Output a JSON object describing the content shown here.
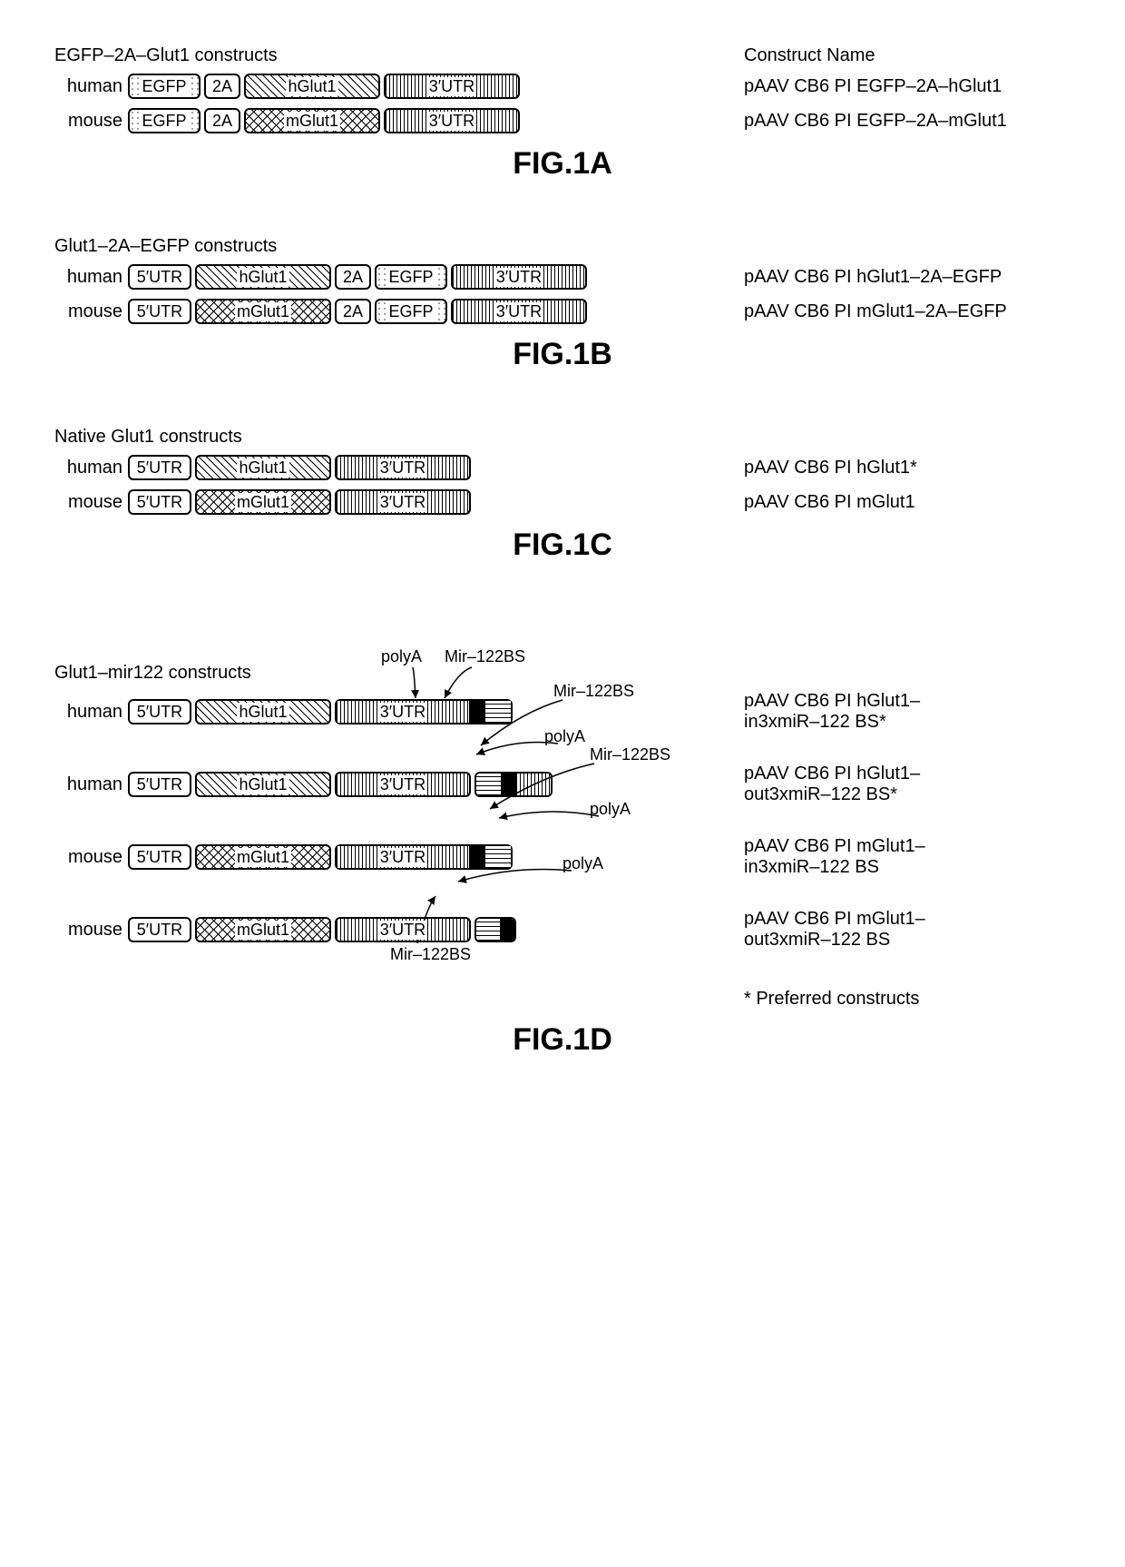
{
  "sizes": {
    "EGFP": 80,
    "2A": 40,
    "hGlut1": 150,
    "mGlut1": 150,
    "3UTR": 150,
    "5UTR": 70,
    "polyA": 18,
    "mir": 28,
    "utrSeg": 40
  },
  "colHeader": "Construct Name",
  "panels": {
    "A": {
      "title": "EGFP–2A–Glut1 constructs",
      "label": "FIG.1A",
      "rows": [
        {
          "species": "human",
          "blocks": [
            {
              "t": "EGFP",
              "p": "p-egfp",
              "w": "EGFP"
            },
            {
              "t": "2A",
              "p": "p-plain",
              "w": "2A"
            },
            {
              "t": "hGlut1",
              "p": "p-diag",
              "w": "hGlut1"
            },
            {
              "t": "3′UTR",
              "p": "p-vbar",
              "w": "3UTR"
            }
          ],
          "name": "pAAV CB6 PI EGFP–2A–hGlut1"
        },
        {
          "species": "mouse",
          "blocks": [
            {
              "t": "EGFP",
              "p": "p-egfp",
              "w": "EGFP"
            },
            {
              "t": "2A",
              "p": "p-plain",
              "w": "2A"
            },
            {
              "t": "mGlut1",
              "p": "p-hatch",
              "w": "mGlut1"
            },
            {
              "t": "3′UTR",
              "p": "p-vbar",
              "w": "3UTR"
            }
          ],
          "name": "pAAV CB6 PI EGFP–2A–mGlut1"
        }
      ]
    },
    "B": {
      "title": "Glut1–2A–EGFP constructs",
      "label": "FIG.1B",
      "rows": [
        {
          "species": "human",
          "blocks": [
            {
              "t": "5′UTR",
              "p": "p-plain",
              "w": "5UTR"
            },
            {
              "t": "hGlut1",
              "p": "p-diag",
              "w": "hGlut1"
            },
            {
              "t": "2A",
              "p": "p-plain",
              "w": "2A"
            },
            {
              "t": "EGFP",
              "p": "p-egfp",
              "w": "EGFP"
            },
            {
              "t": "3′UTR",
              "p": "p-vbar",
              "w": "3UTR"
            }
          ],
          "name": "pAAV CB6 PI hGlut1–2A–EGFP"
        },
        {
          "species": "mouse",
          "blocks": [
            {
              "t": "5′UTR",
              "p": "p-plain",
              "w": "5UTR"
            },
            {
              "t": "mGlut1",
              "p": "p-hatch",
              "w": "mGlut1"
            },
            {
              "t": "2A",
              "p": "p-plain",
              "w": "2A"
            },
            {
              "t": "EGFP",
              "p": "p-egfp",
              "w": "EGFP"
            },
            {
              "t": "3′UTR",
              "p": "p-vbar",
              "w": "3UTR"
            }
          ],
          "name": "pAAV CB6 PI mGlut1–2A–EGFP"
        }
      ]
    },
    "C": {
      "title": "Native Glut1 constructs",
      "label": "FIG.1C",
      "rows": [
        {
          "species": "human",
          "blocks": [
            {
              "t": "5′UTR",
              "p": "p-plain",
              "w": "5UTR"
            },
            {
              "t": "hGlut1",
              "p": "p-diag",
              "w": "hGlut1"
            },
            {
              "t": "3′UTR",
              "p": "p-vbar",
              "w": "3UTR"
            }
          ],
          "name": "pAAV CB6 PI hGlut1*"
        },
        {
          "species": "mouse",
          "blocks": [
            {
              "t": "5′UTR",
              "p": "p-plain",
              "w": "5UTR"
            },
            {
              "t": "mGlut1",
              "p": "p-hatch",
              "w": "mGlut1"
            },
            {
              "t": "3′UTR",
              "p": "p-vbar",
              "w": "3UTR"
            }
          ],
          "name": "pAAV CB6 PI mGlut1"
        }
      ]
    },
    "D": {
      "title": "Glut1–mir122 constructs",
      "label": "FIG.1D",
      "footnote": "* Preferred constructs",
      "labels": {
        "polyA": "polyA",
        "mir": "Mir–122BS"
      },
      "rows": [
        {
          "species": "human",
          "blocks": [
            {
              "t": "5′UTR",
              "p": "p-plain",
              "w": "5UTR"
            },
            {
              "t": "hGlut1",
              "p": "p-diag",
              "w": "hGlut1"
            },
            {
              "t": "3′UTR",
              "p": "p-vbar",
              "w": "3UTR",
              "append": [
                {
                  "p": "p-black",
                  "w": "polyA"
                },
                {
                  "p": "p-hbar",
                  "w": "mir"
                }
              ]
            }
          ],
          "name": "pAAV CB6 PI hGlut1–\nin3xmiR–122 BS*"
        },
        {
          "species": "human",
          "blocks": [
            {
              "t": "5′UTR",
              "p": "p-plain",
              "w": "5UTR"
            },
            {
              "t": "hGlut1",
              "p": "p-diag",
              "w": "hGlut1"
            },
            {
              "t": "3′UTR",
              "p": "p-vbar",
              "w": "3UTR"
            },
            {
              "seg": [
                {
                  "p": "p-hbar",
                  "w": "mir"
                },
                {
                  "p": "p-black",
                  "w": "polyA"
                },
                {
                  "p": "p-vbar",
                  "w": "utrSeg"
                }
              ]
            }
          ],
          "name": "pAAV CB6 PI hGlut1–\nout3xmiR–122 BS*"
        },
        {
          "species": "mouse",
          "blocks": [
            {
              "t": "5′UTR",
              "p": "p-plain",
              "w": "5UTR"
            },
            {
              "t": "mGlut1",
              "p": "p-hatch",
              "w": "mGlut1"
            },
            {
              "t": "3′UTR",
              "p": "p-vbar",
              "w": "3UTR",
              "append": [
                {
                  "p": "p-black",
                  "w": "polyA"
                },
                {
                  "p": "p-hbar",
                  "w": "mir"
                }
              ]
            }
          ],
          "name": "pAAV CB6 PI mGlut1–\nin3xmiR–122 BS"
        },
        {
          "species": "mouse",
          "blocks": [
            {
              "t": "5′UTR",
              "p": "p-plain",
              "w": "5UTR"
            },
            {
              "t": "mGlut1",
              "p": "p-hatch",
              "w": "mGlut1"
            },
            {
              "t": "3′UTR",
              "p": "p-vbar",
              "w": "3UTR"
            },
            {
              "seg": [
                {
                  "p": "p-hbar",
                  "w": "mir"
                },
                {
                  "p": "p-black",
                  "w": "polyA"
                }
              ]
            }
          ],
          "name": "pAAV CB6 PI mGlut1–\nout3xmiR–122 BS"
        }
      ]
    }
  }
}
